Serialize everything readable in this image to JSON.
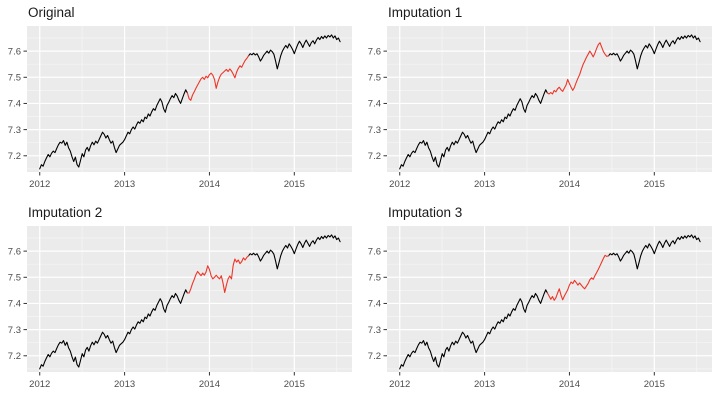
{
  "figure": {
    "background": "#ffffff",
    "panel_background": "#ebebeb",
    "grid_major_color": "#ffffff",
    "grid_minor_color": "#f6f6f6",
    "tick_color": "#333333",
    "tick_label_color": "#4d4d4d",
    "title_color": "#1a1a1a",
    "line_color": "#000000",
    "highlight_color": "#ee3528"
  },
  "panels": [
    {
      "id": "original",
      "title": "Original",
      "series": "original"
    },
    {
      "id": "imputation-1",
      "title": "Imputation 1",
      "series": "imputation1"
    },
    {
      "id": "imputation-2",
      "title": "Imputation 2",
      "series": "imputation2"
    },
    {
      "id": "imputation-3",
      "title": "Imputation 3",
      "series": "imputation3"
    }
  ],
  "chart_data": {
    "type": "line",
    "description": "2x2 grid of identical log-scale index time series (2012-2015.5); segment 2013.76-2014.44 highlighted in red, true values in 'Original' and three alternative imputed paths in the other panels.",
    "axes": {
      "x_ticks": [
        2012,
        2013,
        2014,
        2015
      ],
      "x_tick_labels": [
        "2012",
        "2013",
        "2014",
        "2015"
      ],
      "x_minor_ticks": [
        2012.5,
        2013.5,
        2014.5,
        2015.5
      ],
      "y_ticks": [
        7.2,
        7.3,
        7.4,
        7.5,
        7.6
      ],
      "y_tick_labels": [
        "7.2",
        "7.3",
        "7.4",
        "7.5",
        "7.6"
      ],
      "y_minor_ticks": [
        7.15,
        7.25,
        7.35,
        7.45,
        7.55,
        7.65
      ],
      "x_range": [
        2011.85,
        2015.68
      ],
      "y_range": [
        7.138,
        7.696
      ],
      "grid": true,
      "legend": "none"
    },
    "highlight_span": [
      2013.76,
      2014.44
    ],
    "black_pre": {
      "x_start": 2012.0,
      "x_step": 0.02,
      "y": [
        7.15,
        7.166,
        7.16,
        7.178,
        7.192,
        7.205,
        7.196,
        7.21,
        7.218,
        7.212,
        7.228,
        7.242,
        7.252,
        7.248,
        7.258,
        7.24,
        7.252,
        7.23,
        7.218,
        7.196,
        7.178,
        7.195,
        7.166,
        7.157,
        7.182,
        7.208,
        7.196,
        7.222,
        7.232,
        7.218,
        7.238,
        7.252,
        7.242,
        7.256,
        7.248,
        7.262,
        7.276,
        7.29,
        7.282,
        7.268,
        7.278,
        7.262,
        7.248,
        7.256,
        7.232,
        7.212,
        7.226,
        7.24,
        7.246,
        7.252,
        7.262,
        7.276,
        7.29,
        7.284,
        7.3,
        7.31,
        7.302,
        7.318,
        7.33,
        7.324,
        7.338,
        7.33,
        7.348,
        7.342,
        7.36,
        7.352,
        7.368,
        7.38,
        7.374,
        7.392,
        7.405,
        7.418,
        7.406,
        7.38,
        7.366,
        7.392,
        7.404,
        7.418,
        7.43,
        7.422,
        7.438,
        7.428,
        7.412,
        7.4,
        7.418,
        7.436,
        7.452,
        7.44
      ]
    },
    "black_post": {
      "x_start": 2014.46,
      "x_step": 0.02,
      "y": [
        7.582,
        7.59,
        7.586,
        7.592,
        7.585,
        7.59,
        7.578,
        7.562,
        7.572,
        7.584,
        7.592,
        7.6,
        7.592,
        7.604,
        7.598,
        7.588,
        7.562,
        7.532,
        7.556,
        7.582,
        7.6,
        7.612,
        7.622,
        7.612,
        7.628,
        7.618,
        7.606,
        7.59,
        7.608,
        7.625,
        7.638,
        7.628,
        7.614,
        7.63,
        7.642,
        7.63,
        7.618,
        7.632,
        7.64,
        7.628,
        7.642,
        7.652,
        7.644,
        7.656,
        7.648,
        7.658,
        7.65,
        7.66,
        7.654,
        7.662,
        7.65,
        7.658,
        7.644,
        7.65,
        7.636
      ]
    },
    "red_segments": {
      "original": {
        "x_start": 2013.76,
        "x_step": 0.02,
        "y": [
          7.418,
          7.412,
          7.432,
          7.444,
          7.458,
          7.47,
          7.482,
          7.494,
          7.5,
          7.492,
          7.504,
          7.498,
          7.51,
          7.516,
          7.508,
          7.492,
          7.458,
          7.482,
          7.5,
          7.512,
          7.518,
          7.524,
          7.53,
          7.522,
          7.532,
          7.524,
          7.512,
          7.498,
          7.52,
          7.534,
          7.544,
          7.538,
          7.552,
          7.564,
          7.572
        ]
      },
      "imputation1": {
        "x_start": 2013.76,
        "x_step": 0.02,
        "y": [
          7.436,
          7.442,
          7.436,
          7.45,
          7.444,
          7.456,
          7.462,
          7.452,
          7.446,
          7.458,
          7.47,
          7.492,
          7.476,
          7.462,
          7.45,
          7.462,
          7.48,
          7.496,
          7.51,
          7.53,
          7.548,
          7.562,
          7.576,
          7.588,
          7.6,
          7.59,
          7.578,
          7.592,
          7.61,
          7.625,
          7.632,
          7.615,
          7.598,
          7.588,
          7.58
        ]
      },
      "imputation2": {
        "x_start": 2013.76,
        "x_step": 0.02,
        "y": [
          7.44,
          7.456,
          7.476,
          7.492,
          7.51,
          7.522,
          7.514,
          7.506,
          7.516,
          7.508,
          7.52,
          7.544,
          7.53,
          7.506,
          7.494,
          7.5,
          7.508,
          7.5,
          7.494,
          7.506,
          7.478,
          7.442,
          7.47,
          7.494,
          7.505,
          7.494,
          7.546,
          7.57,
          7.558,
          7.566,
          7.552,
          7.56,
          7.574,
          7.566,
          7.576
        ]
      },
      "imputation3": {
        "x_start": 2013.76,
        "x_step": 0.02,
        "y": [
          7.428,
          7.416,
          7.426,
          7.412,
          7.422,
          7.44,
          7.456,
          7.432,
          7.414,
          7.428,
          7.44,
          7.452,
          7.47,
          7.482,
          7.476,
          7.488,
          7.48,
          7.47,
          7.478,
          7.47,
          7.462,
          7.456,
          7.466,
          7.476,
          7.49,
          7.498,
          7.492,
          7.506,
          7.518,
          7.53,
          7.544,
          7.558,
          7.572,
          7.584,
          7.58
        ]
      }
    }
  }
}
